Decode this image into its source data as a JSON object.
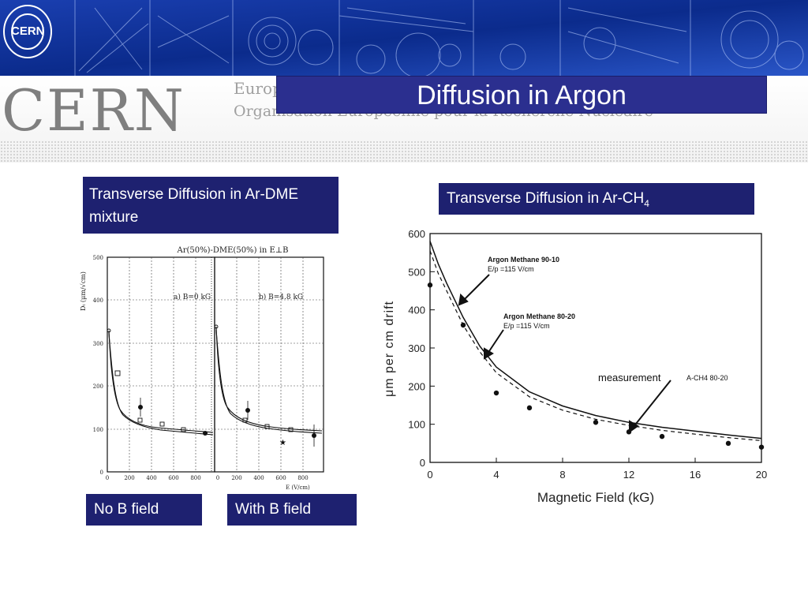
{
  "header": {
    "logo_text": "CERN",
    "org_line1": "Europ",
    "org_line2": "Organisation Européenne pour la Recherche Nucléaire"
  },
  "slide": {
    "title": "Diffusion in Argon"
  },
  "left_panel": {
    "caption": "Transverse Diffusion in Ar-DME mixture",
    "label_left": "No B field",
    "label_right": "With B field",
    "figure": {
      "title": "Ar(50%)-DME(50%) in E⊥B",
      "panel_a": "a)   B=0 kG",
      "panel_b": "b)   B=4.8 kG",
      "ylabel": "Dₜ (μm/√cm)",
      "xlabel": "E (V/cm)",
      "yticks": [
        "0",
        "100",
        "200",
        "300",
        "400",
        "500"
      ],
      "xticks_a": [
        "0",
        "200",
        "400",
        "600",
        "800"
      ],
      "xticks_b": [
        "0",
        "200",
        "400",
        "600",
        "800"
      ]
    }
  },
  "right_panel": {
    "caption": "Transverse Diffusion in Ar-CH",
    "caption_sub": "4"
  },
  "chart_data": {
    "type": "line",
    "title": "",
    "xlabel": "Magnetic  Field  (kG)",
    "ylabel": "μm  per  cm  drift",
    "xlim": [
      0,
      20
    ],
    "ylim": [
      0,
      600
    ],
    "xticks": [
      "0",
      "4",
      "8",
      "12",
      "16",
      "20"
    ],
    "yticks": [
      "0",
      "100",
      "200",
      "300",
      "400",
      "500",
      "600"
    ],
    "series": [
      {
        "name": "Argon Methane  90-10",
        "style": "solid",
        "x": [
          0,
          0.5,
          1,
          2,
          3,
          4,
          6,
          8,
          10,
          12,
          14,
          16,
          18,
          20
        ],
        "y": [
          580,
          520,
          470,
          380,
          305,
          250,
          185,
          148,
          123,
          105,
          92,
          82,
          72,
          63
        ]
      },
      {
        "name": "Argon Methane  80-20",
        "style": "dashed",
        "x": [
          0,
          0.5,
          1,
          2,
          3,
          4,
          6,
          8,
          10,
          12,
          14,
          16,
          18,
          20
        ],
        "y": [
          555,
          495,
          450,
          360,
          290,
          235,
          172,
          137,
          113,
          97,
          84,
          74,
          65,
          57
        ]
      },
      {
        "name": "measurement",
        "style": "points",
        "x": [
          0,
          2,
          4,
          6,
          10,
          12,
          14,
          18,
          20
        ],
        "y": [
          465,
          360,
          182,
          143,
          105,
          80,
          68,
          50,
          40
        ]
      }
    ],
    "annotations": [
      {
        "text": "Argon Methane  90-10",
        "text2": "E/p =115  V/cm"
      },
      {
        "text": "Argon Methane  80-20",
        "text2": "E/p =115  V/cm"
      },
      {
        "text": "measurement"
      },
      {
        "text": "A-CH4  80-20"
      }
    ]
  }
}
